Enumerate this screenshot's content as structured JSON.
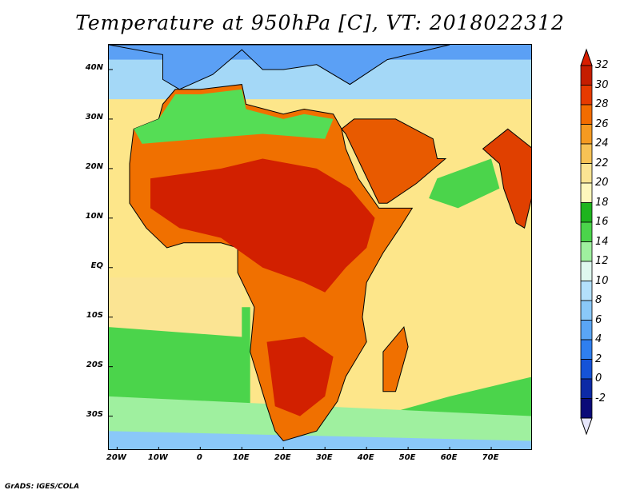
{
  "title": "Temperature at 950hPa [C], VT: 2018022312",
  "credit": "GrADS: IGES/COLA",
  "map": {
    "lat_ticks": [
      "40N",
      "30N",
      "20N",
      "10N",
      "EQ",
      "10S",
      "20S",
      "30S"
    ],
    "lon_ticks": [
      "20W",
      "10W",
      "0",
      "10E",
      "20E",
      "30E",
      "40E",
      "50E",
      "60E",
      "70E"
    ],
    "lat_values": [
      40,
      30,
      20,
      10,
      0,
      -10,
      -20,
      -30
    ],
    "lon_values": [
      -20,
      -10,
      0,
      10,
      20,
      30,
      40,
      50,
      60,
      70
    ],
    "lon_range": [
      -22,
      80
    ],
    "lat_range": [
      -37,
      45
    ],
    "ocean_color": "#fde68a",
    "land_colors": {
      "hot": "#d22000",
      "warm": "#f07000",
      "mild": "#f7b64d",
      "cool": "#55dd55",
      "cold": "#5ba0f5"
    }
  },
  "colorbar": {
    "labels": [
      "32",
      "30",
      "28",
      "26",
      "24",
      "22",
      "20",
      "18",
      "16",
      "14",
      "12",
      "10",
      "8",
      "6",
      "4",
      "2",
      "0",
      "-2"
    ],
    "colors": [
      "#c51d00",
      "#e63a00",
      "#f26c00",
      "#f59a21",
      "#f7c255",
      "#fbe493",
      "#fef7bc",
      "#1eb41e",
      "#4bd44b",
      "#9ff09f",
      "#dff8ef",
      "#b4e0fb",
      "#8ac8f8",
      "#5aa5f4",
      "#2f7fef",
      "#1553d8",
      "#0c2aa6",
      "#0a0a78"
    ],
    "top_triangle_color": "#d81e00",
    "bottom_triangle_color": "#e6e6fb"
  }
}
